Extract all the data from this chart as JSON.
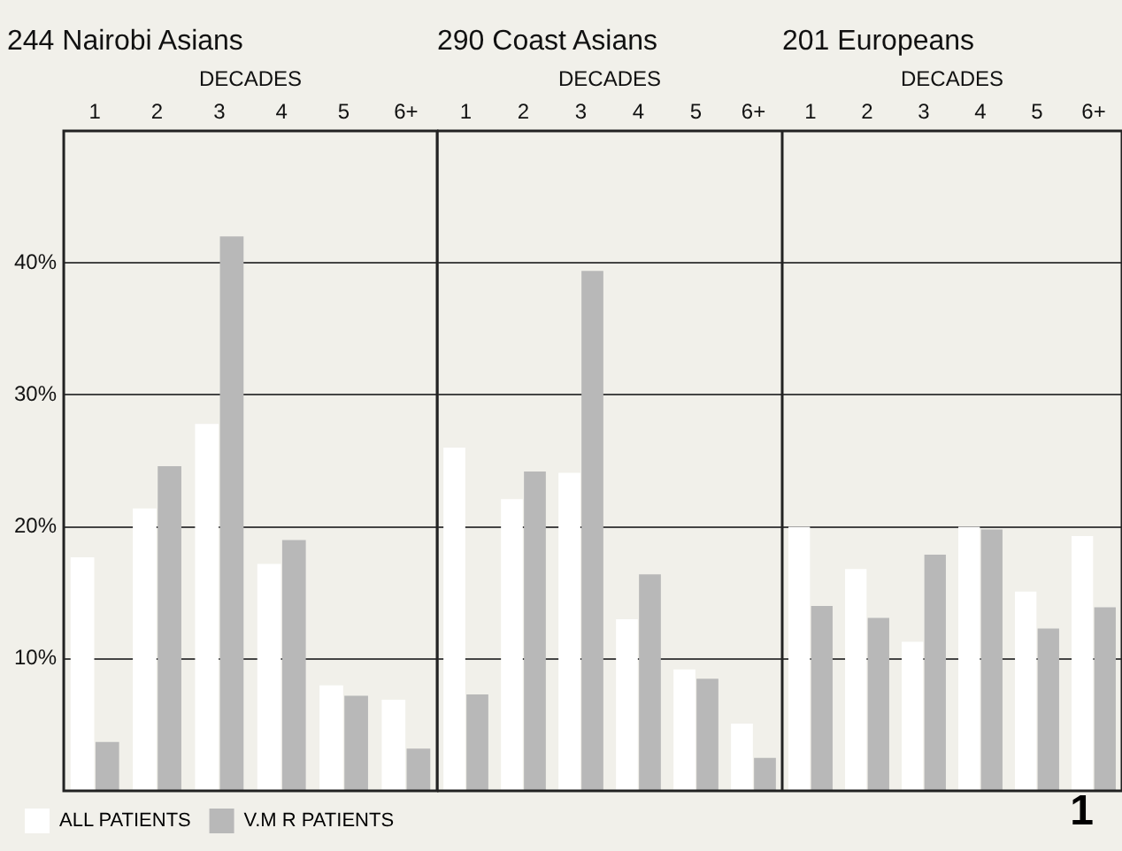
{
  "chart_data": [
    {
      "type": "bar",
      "title": "244 Nairobi Asians",
      "xlabel": "DECADES",
      "categories": [
        "1",
        "2",
        "3",
        "4",
        "5",
        "6+"
      ],
      "ylim": [
        0,
        50
      ],
      "yticks": [
        {
          "value": 10,
          "label": "10%"
        },
        {
          "value": 20,
          "label": "20%"
        },
        {
          "value": 30,
          "label": "30%"
        },
        {
          "value": 40,
          "label": "40%"
        }
      ],
      "grid": "y",
      "legend": "bottom left",
      "series": [
        {
          "name": "ALL PATIENTS",
          "color": "#ffffff",
          "values": [
            17.7,
            21.4,
            27.8,
            17.2,
            8.0,
            6.9
          ]
        },
        {
          "name": "V.M R PATIENTS",
          "color": "#b8b8b8",
          "values": [
            3.7,
            24.6,
            42.0,
            19.0,
            7.2,
            3.2
          ]
        }
      ]
    },
    {
      "type": "bar",
      "title": "290 Coast Asians",
      "xlabel": "DECADES",
      "categories": [
        "1",
        "2",
        "3",
        "4",
        "5",
        "6+"
      ],
      "ylim": [
        0,
        50
      ],
      "yticks": [
        10,
        20,
        30,
        40
      ],
      "grid": "y",
      "tick_labels": "x",
      "series": [
        {
          "color": "#ffffff",
          "values": [
            26.0,
            22.1,
            24.1,
            13.0,
            9.2,
            5.1
          ]
        },
        {
          "color": "#b8b8b8",
          "values": [
            7.3,
            24.2,
            39.4,
            16.4,
            8.5,
            2.5
          ]
        }
      ]
    },
    {
      "type": "bar",
      "title": "201 Europeans",
      "xlabel": "DECADES",
      "categories": [
        "1",
        "2",
        "3",
        "4",
        "5",
        "6+"
      ],
      "ylim": [
        0,
        50
      ],
      "yticks": [
        10,
        20,
        30,
        40
      ],
      "grid": "y",
      "tick_labels": "x",
      "annotations": [
        "1"
      ],
      "series": [
        {
          "color": "#ffffff",
          "values": [
            20.0,
            16.8,
            11.3,
            20.0,
            15.1,
            19.3
          ]
        },
        {
          "color": "#b8b8b8",
          "values": [
            14.0,
            13.1,
            17.9,
            19.8,
            12.3,
            13.9
          ]
        }
      ]
    }
  ]
}
